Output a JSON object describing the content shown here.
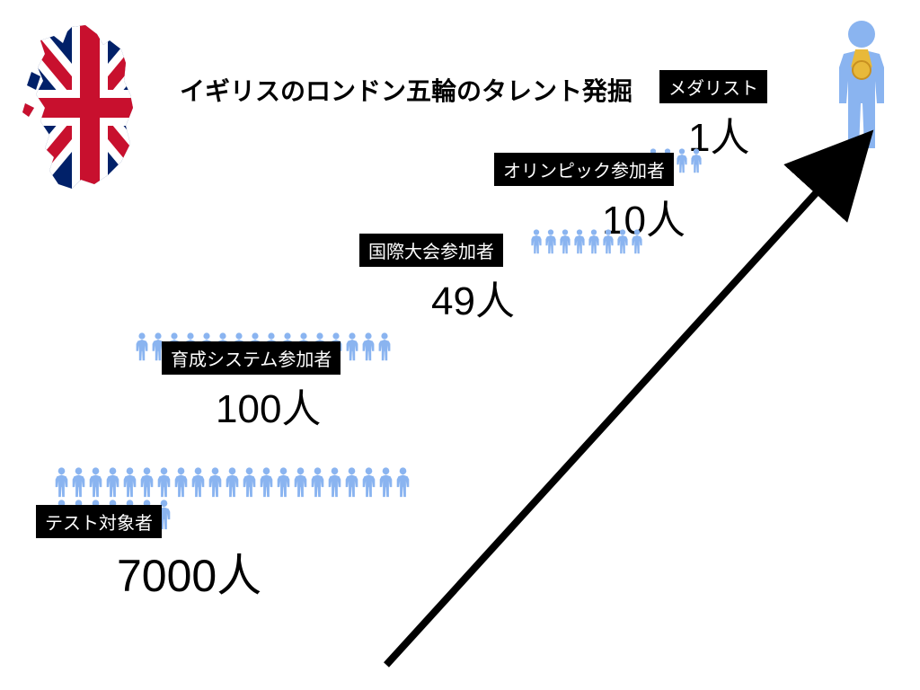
{
  "title": "イギリスのロンドン五輪のタレント発掘",
  "colors": {
    "person": "#8ab4f0",
    "label_bg": "#000000",
    "label_text": "#ffffff",
    "text": "#000000",
    "arrow": "#000000",
    "medal_gold": "#e8b93a",
    "uk_red": "#c8102e",
    "uk_blue": "#012169",
    "uk_white": "#ffffff"
  },
  "stages": [
    {
      "label": "テスト対象者",
      "value": "7000人",
      "people_count": 28,
      "person_size": 34
    },
    {
      "label": "育成システム参加者",
      "value": "100人",
      "people_count": 16,
      "person_size": 32
    },
    {
      "label": "国際大会参加者",
      "value": "49人",
      "people_count": 8,
      "person_size": 28
    },
    {
      "label": "オリンピック参加者",
      "value": "10人",
      "people_count": 4,
      "person_size": 28
    },
    {
      "label": "メダリスト",
      "value": "1人",
      "people_count": 1,
      "person_size": 90
    }
  ]
}
